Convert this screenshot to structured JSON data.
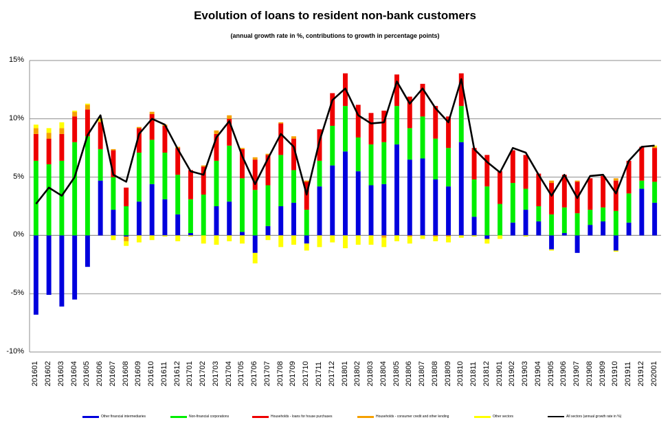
{
  "chart_data": {
    "type": "bar",
    "stacked": true,
    "title": "Evolution of loans to resident non-bank customers",
    "subtitle": "(annual growth rate in %, contributions to growth in percentage points)",
    "ylim": [
      -10,
      15
    ],
    "yticks": [
      "15%",
      "10%",
      "5%",
      "0%",
      "-5%",
      "-10%"
    ],
    "ytick_values": [
      15,
      10,
      5,
      0,
      -5,
      -10
    ],
    "gridlines": "horizontal",
    "legend_position": "bottom",
    "categories": [
      "201601",
      "201602",
      "201603",
      "201604",
      "201605",
      "201606",
      "201607",
      "201608",
      "201609",
      "201610",
      "201611",
      "201612",
      "201701",
      "201702",
      "201703",
      "201704",
      "201705",
      "201706",
      "201707",
      "201708",
      "201709",
      "201710",
      "201711",
      "201712",
      "201801",
      "201802",
      "201803",
      "201804",
      "201805",
      "201806",
      "201807",
      "201808",
      "201809",
      "201810",
      "201811",
      "201812",
      "201901",
      "201902",
      "201903",
      "201904",
      "201905",
      "201906",
      "201907",
      "201908",
      "201909",
      "201910",
      "201911",
      "201912",
      "202001"
    ],
    "series": [
      {
        "name": "Other financial intermediaries",
        "color": "#0000dd",
        "values": [
          -6.8,
          -5.1,
          -6.1,
          -5.5,
          -2.7,
          4.7,
          2.2,
          -0.1,
          2.9,
          4.4,
          3.1,
          1.8,
          0.2,
          0.0,
          2.5,
          2.9,
          0.3,
          -1.5,
          0.8,
          2.5,
          2.8,
          -0.7,
          4.2,
          6.0,
          7.2,
          5.5,
          4.3,
          4.4,
          7.8,
          6.5,
          6.6,
          4.8,
          4.2,
          8.0,
          1.6,
          -0.3,
          0.0,
          1.1,
          2.2,
          1.2,
          -1.2,
          0.2,
          -1.5,
          0.9,
          1.2,
          -1.3,
          1.1,
          4.0,
          2.8
        ]
      },
      {
        "name": "Non-financial corporations",
        "color": "#00ee00",
        "values": [
          6.4,
          6.1,
          6.4,
          8.0,
          8.5,
          2.7,
          2.8,
          2.5,
          4.2,
          3.8,
          4.0,
          3.4,
          2.9,
          3.5,
          3.9,
          4.8,
          4.6,
          3.9,
          3.5,
          4.4,
          2.8,
          2.2,
          2.2,
          3.4,
          3.9,
          2.9,
          3.5,
          3.6,
          3.3,
          2.7,
          3.6,
          3.5,
          3.3,
          3.1,
          3.2,
          4.2,
          2.7,
          3.4,
          1.8,
          1.3,
          1.8,
          2.2,
          1.9,
          1.3,
          1.2,
          2.1,
          2.5,
          0.7,
          1.8
        ]
      },
      {
        "name": "Households - loans for house purchases",
        "color": "#ee0000",
        "values": [
          2.3,
          2.2,
          2.3,
          2.2,
          2.3,
          2.3,
          2.3,
          1.6,
          2.1,
          2.2,
          2.3,
          2.3,
          2.5,
          2.4,
          2.3,
          2.3,
          2.5,
          2.6,
          2.6,
          2.7,
          2.7,
          2.4,
          2.7,
          2.8,
          2.8,
          2.8,
          2.7,
          2.7,
          2.7,
          2.7,
          2.8,
          2.8,
          2.7,
          2.8,
          2.7,
          2.7,
          2.8,
          2.8,
          2.9,
          2.8,
          2.7,
          2.8,
          2.7,
          2.7,
          2.7,
          2.6,
          2.8,
          2.9,
          2.9
        ]
      },
      {
        "name": "Households - consumer credit and other lending",
        "color": "#f5a000",
        "values": [
          0.5,
          0.5,
          0.5,
          0.4,
          0.4,
          0.1,
          0.1,
          -0.4,
          0.1,
          0.2,
          0.1,
          0.1,
          0.0,
          0.1,
          0.3,
          0.3,
          0.1,
          0.2,
          0.1,
          0.1,
          0.2,
          0.1,
          0.0,
          0.0,
          0.0,
          0.0,
          0.0,
          -0.2,
          0.0,
          -0.1,
          0.0,
          -0.1,
          -0.1,
          0.0,
          0.0,
          0.0,
          0.0,
          0.0,
          0.0,
          0.0,
          0.2,
          0.0,
          0.1,
          0.0,
          0.0,
          0.2,
          0.0,
          0.0,
          0.1
        ]
      },
      {
        "name": "Other sectors",
        "color": "#ffff00",
        "values": [
          0.3,
          0.4,
          0.5,
          0.1,
          0.1,
          0.2,
          -0.4,
          -0.4,
          -0.6,
          -0.4,
          -0.1,
          -0.5,
          -0.1,
          -0.7,
          -0.8,
          -0.5,
          -0.7,
          -0.9,
          -0.4,
          -1.0,
          -0.8,
          -0.6,
          -1.0,
          -0.6,
          -1.1,
          -0.8,
          -0.8,
          -0.8,
          -0.5,
          -0.6,
          -0.3,
          -0.4,
          -0.5,
          -0.2,
          -0.1,
          -0.4,
          -0.3,
          0.0,
          -0.1,
          0.0,
          -0.1,
          0.0,
          0.0,
          0.0,
          0.0,
          -0.1,
          0.0,
          0.0,
          0.1
        ]
      }
    ],
    "line_series": {
      "name": "All sectors (annual growth rate in %)",
      "color": "#000000",
      "values": [
        2.7,
        4.1,
        3.4,
        5.0,
        8.6,
        10.3,
        5.2,
        4.6,
        8.7,
        10.0,
        9.5,
        7.4,
        5.5,
        5.2,
        8.4,
        9.8,
        6.8,
        4.4,
        6.6,
        8.7,
        7.6,
        3.5,
        8.1,
        11.6,
        12.6,
        10.3,
        9.6,
        9.7,
        13.2,
        11.3,
        12.6,
        10.9,
        9.7,
        13.4,
        7.4,
        6.3,
        5.4,
        7.5,
        7.1,
        5.2,
        3.4,
        5.2,
        3.2,
        5.1,
        5.2,
        3.6,
        6.4,
        7.6,
        7.7
      ]
    }
  }
}
